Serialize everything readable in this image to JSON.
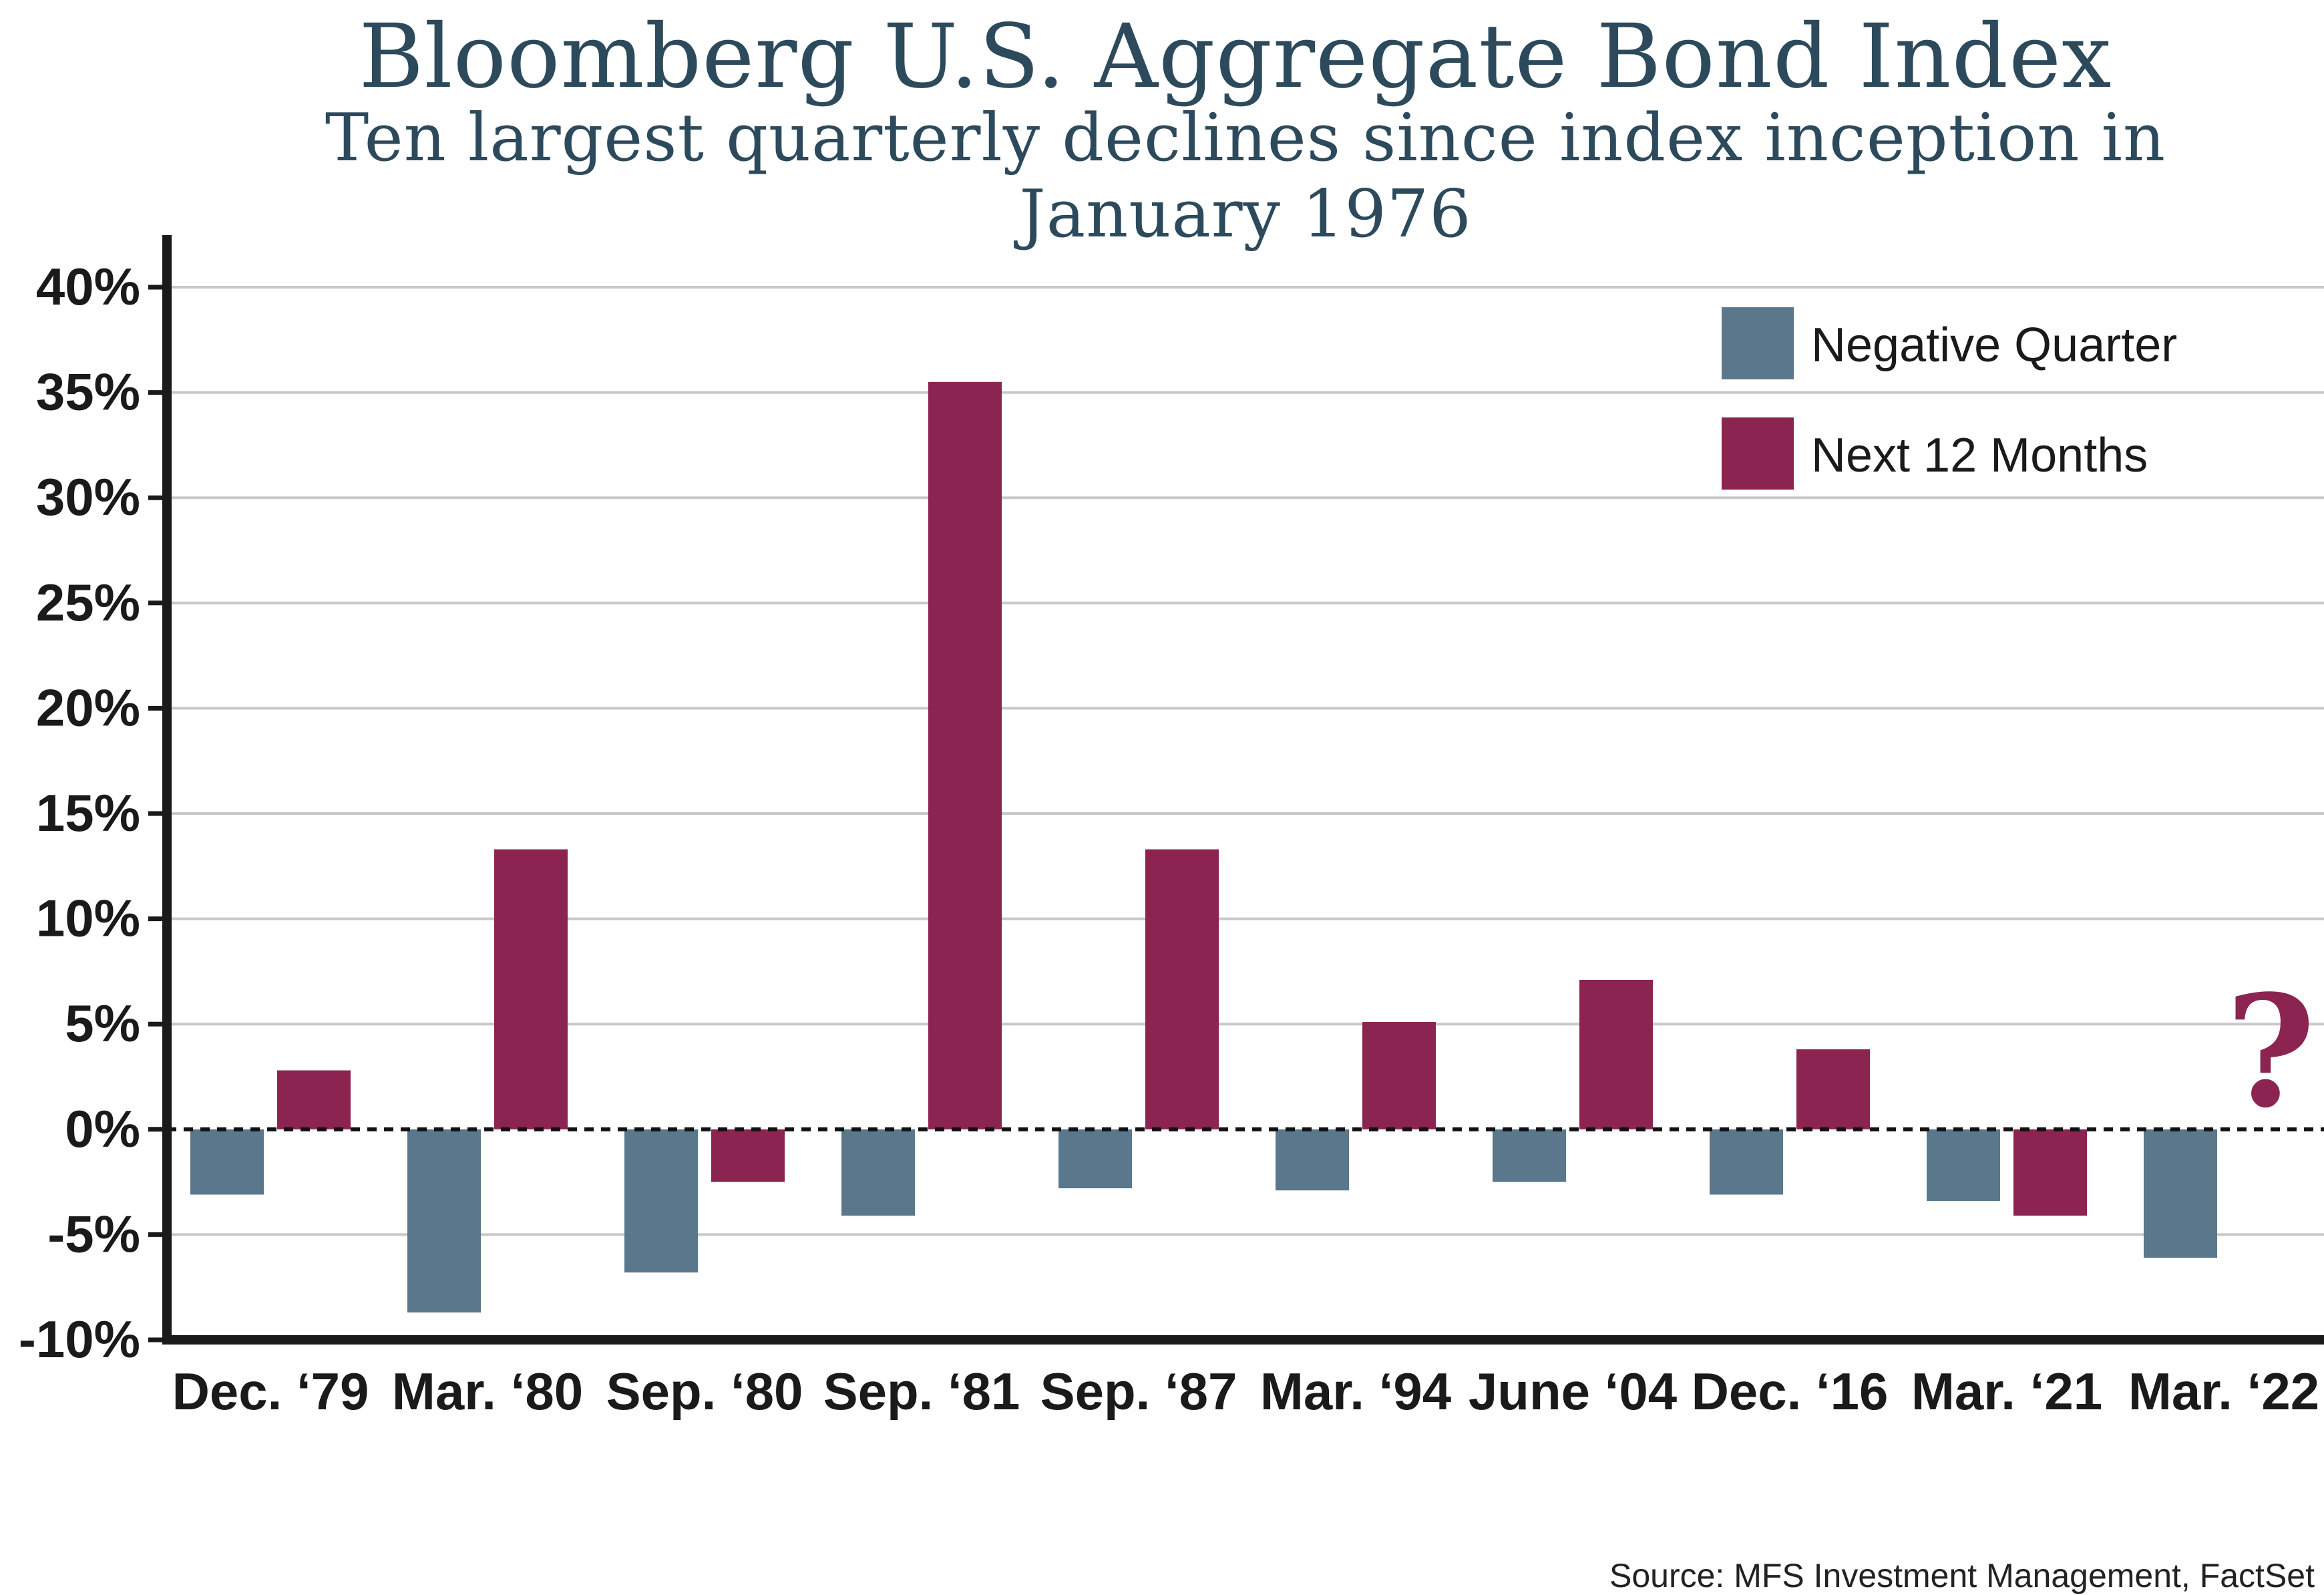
{
  "title": "Bloomberg U.S. Aggregate Bond Index",
  "subtitle": "Ten largest quarterly declines since index inception in January 1976",
  "source": "Source: MFS Investment Management, FactSet",
  "annotation": "?",
  "colors": {
    "negative_quarter": "#5a778b",
    "next_12_months": "#8b2450",
    "axis": "#1a1a1a",
    "grid": "#c8c8c8",
    "text": "#2c4a5c"
  },
  "chart_data": {
    "type": "bar",
    "categories": [
      "Dec. ‘79",
      "Mar. ‘80",
      "Sep. ‘80",
      "Sep. ‘81",
      "Sep. ‘87",
      "Mar. ‘94",
      "June ‘04",
      "Dec. ‘16",
      "Mar. ‘21",
      "Mar. ‘22"
    ],
    "series": [
      {
        "name": "Negative Quarter",
        "values": [
          -3.1,
          -8.7,
          -6.8,
          -4.1,
          -2.8,
          -2.9,
          -2.5,
          -3.1,
          -3.4,
          -6.1
        ]
      },
      {
        "name": "Next 12 Months",
        "values": [
          2.8,
          13.3,
          -2.5,
          35.5,
          13.3,
          5.1,
          7.1,
          3.8,
          -4.1,
          null
        ]
      }
    ],
    "ylim": [
      -10,
      40
    ],
    "yticks": [
      -10,
      -5,
      0,
      5,
      10,
      15,
      20,
      25,
      30,
      35,
      40
    ],
    "ytick_labels": [
      "-10%",
      "-5%",
      "0%",
      "5%",
      "10%",
      "15%",
      "20%",
      "25%",
      "30%",
      "35%",
      "40%"
    ],
    "grid": true,
    "legend_position": "top-right",
    "zero_line": "dotted"
  }
}
